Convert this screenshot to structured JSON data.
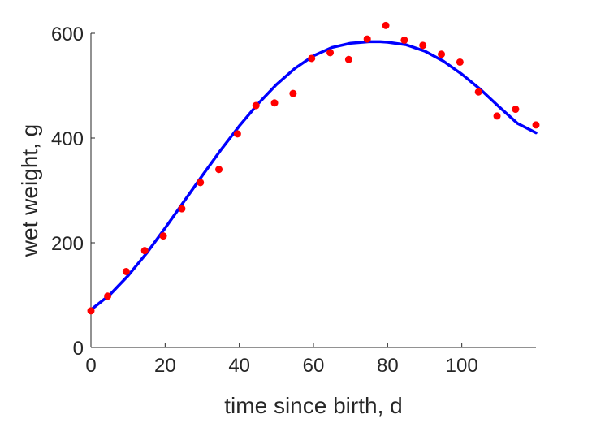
{
  "chart_data": {
    "type": "scatter",
    "title": "",
    "xlabel": "time since birth, d",
    "ylabel": "wet weight, g",
    "xlim": [
      0,
      120
    ],
    "ylim": [
      0,
      600
    ],
    "xticks": [
      0,
      20,
      40,
      60,
      80,
      100
    ],
    "yticks": [
      0,
      200,
      400,
      600
    ],
    "grid": false,
    "legend": "none",
    "series": [
      {
        "type": "scatter",
        "color": "#ff0000",
        "x": [
          0,
          4.5,
          9.5,
          14.5,
          19.5,
          24.5,
          29.5,
          34.5,
          39.5,
          44.5,
          49.5,
          54.5,
          59.5,
          64.5,
          69.5,
          74.5,
          79.5,
          84.5,
          89.5,
          94.5,
          99.5,
          104.5,
          109.5,
          114.5,
          120
        ],
        "y": [
          70,
          98,
          145,
          185,
          213,
          265,
          315,
          340,
          408,
          462,
          467,
          485,
          552,
          563,
          550,
          589,
          615,
          587,
          577,
          560,
          545,
          488,
          442,
          455,
          425
        ]
      },
      {
        "type": "line",
        "color": "#0000ff",
        "x": [
          0,
          5,
          10,
          15,
          20,
          25,
          30,
          35,
          40,
          45,
          50,
          55,
          60,
          65,
          70,
          75,
          78,
          80,
          85,
          90,
          95,
          100,
          105,
          110,
          115,
          120
        ],
        "y": [
          72,
          100,
          137,
          180,
          228,
          278,
          328,
          377,
          423,
          465,
          502,
          533,
          557,
          573,
          581,
          584,
          584,
          583,
          578,
          566,
          547,
          522,
          493,
          460,
          428,
          410
        ]
      }
    ]
  }
}
